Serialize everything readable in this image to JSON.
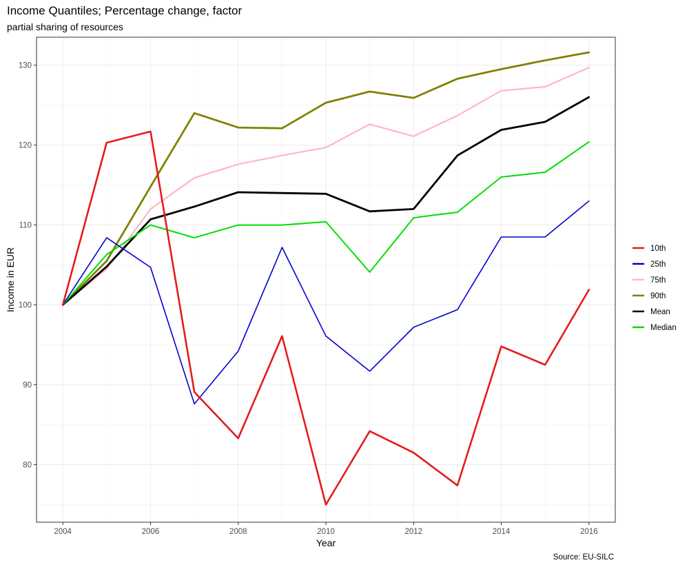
{
  "chart_data": {
    "type": "line",
    "title": "Income Quantiles; Percentage change, factor",
    "subtitle": "partial sharing of resources",
    "xlabel": "Year",
    "ylabel": "Income in EUR",
    "caption": "Source: EU-SILC",
    "xlim": [
      2003.4,
      2016.6
    ],
    "ylim": [
      72.8,
      133.5
    ],
    "x_ticks": [
      2004,
      2006,
      2008,
      2010,
      2012,
      2014,
      2016
    ],
    "y_ticks": [
      80,
      90,
      100,
      110,
      120,
      130
    ],
    "grid": true,
    "legend_position": "right",
    "x": [
      2004,
      2005,
      2006,
      2007,
      2008,
      2009,
      2010,
      2011,
      2012,
      2013,
      2014,
      2015,
      2016
    ],
    "series": [
      {
        "name": "10th",
        "color": "#e41a1c",
        "values": [
          100.0,
          120.3,
          121.7,
          89.1,
          83.3,
          96.1,
          75.0,
          84.2,
          81.5,
          77.4,
          94.8,
          92.5,
          101.9
        ]
      },
      {
        "name": "25th",
        "color": "#0000cc",
        "values": [
          100.0,
          108.4,
          104.7,
          87.6,
          94.2,
          107.2,
          96.1,
          91.7,
          97.2,
          99.4,
          108.5,
          108.5,
          113.0
        ]
      },
      {
        "name": "75th",
        "color": "#ffb6c1",
        "values": [
          100.0,
          104.5,
          112.0,
          115.9,
          117.6,
          118.7,
          119.7,
          122.6,
          121.1,
          123.7,
          126.8,
          127.3,
          129.7
        ]
      },
      {
        "name": "90th",
        "color": "#808000",
        "values": [
          100.0,
          105.5,
          114.8,
          124.0,
          122.2,
          122.1,
          125.3,
          126.7,
          125.9,
          128.3,
          129.5,
          130.6,
          131.6
        ]
      },
      {
        "name": "Mean",
        "color": "#000000",
        "values": [
          100.0,
          104.8,
          110.7,
          112.3,
          114.1,
          114.0,
          113.9,
          111.7,
          112.0,
          118.7,
          121.9,
          122.9,
          126.0
        ]
      },
      {
        "name": "Median",
        "color": "#00dd00",
        "values": [
          100.0,
          106.3,
          110.0,
          108.4,
          110.0,
          110.0,
          110.4,
          104.1,
          110.9,
          111.6,
          116.0,
          116.6,
          120.4
        ]
      }
    ]
  }
}
